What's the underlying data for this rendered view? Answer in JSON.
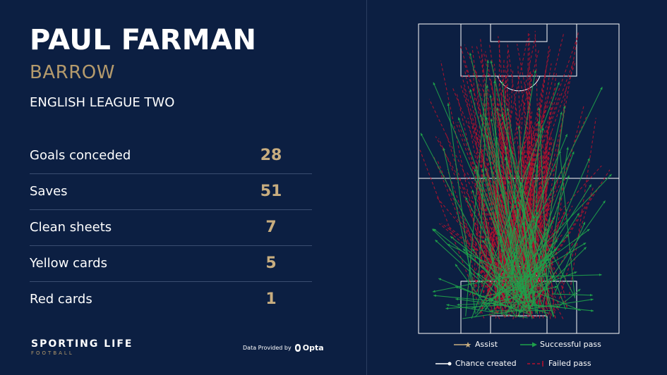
{
  "player": {
    "name": "PAUL FARMAN",
    "club": "BARROW",
    "league": "ENGLISH LEAGUE TWO"
  },
  "stats": [
    {
      "label": "Goals conceded",
      "value": "28"
    },
    {
      "label": "Saves",
      "value": "51"
    },
    {
      "label": "Clean sheets",
      "value": "7"
    },
    {
      "label": "Yellow cards",
      "value": "5"
    },
    {
      "label": "Red cards",
      "value": "1"
    }
  ],
  "branding": {
    "name": "SPORTING LIFE",
    "sub": "FOOTBALL",
    "provider_text": "Data Provided by",
    "provider_name": "Opta"
  },
  "legend": {
    "assist": "Assist",
    "successful_pass": "Successful pass",
    "chance_created": "Chance created",
    "failed_pass": "Failed pass"
  },
  "colors": {
    "background": "#0c1f42",
    "accent_gold": "#c8ad7f",
    "successful_pass": "#1fa04a",
    "failed_pass": "#b3122e",
    "assist": "#c8ad7f",
    "chance_created": "#ffffff"
  }
}
